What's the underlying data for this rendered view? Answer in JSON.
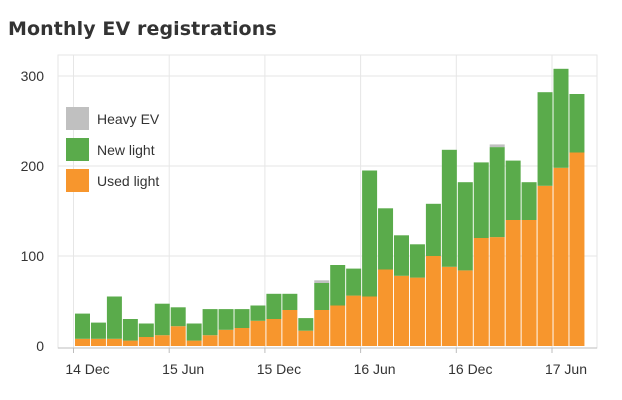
{
  "chart_data": {
    "type": "bar",
    "stacked": true,
    "title": "Monthly EV registrations",
    "xlabel": "",
    "ylabel": "",
    "ylim": [
      0,
      310
    ],
    "yticks": [
      0,
      100,
      200,
      300
    ],
    "xtick_labels": [
      "14 Dec",
      "15 Jun",
      "15 Dec",
      "16 Jun",
      "16 Dec",
      "17 Jun"
    ],
    "xtick_positions": [
      0,
      6,
      12,
      18,
      24,
      30
    ],
    "categories": [
      "Dec 2014",
      "Jan 2015",
      "Feb 2015",
      "Mar 2015",
      "Apr 2015",
      "May 2015",
      "Jun 2015",
      "Jul 2015",
      "Aug 2015",
      "Sep 2015",
      "Oct 2015",
      "Nov 2015",
      "Dec 2015",
      "Jan 2016",
      "Feb 2016",
      "Mar 2016",
      "Apr 2016",
      "May 2016",
      "Jun 2016",
      "Jul 2016",
      "Aug 2016",
      "Sep 2016",
      "Oct 2016",
      "Nov 2016",
      "Dec 2016",
      "Jan 2017",
      "Feb 2017",
      "Mar 2017",
      "Apr 2017",
      "May 2017",
      "Jun 2017",
      "Jul 2017"
    ],
    "series": [
      {
        "name": "Used light",
        "color": "#f7962d",
        "values": [
          8,
          8,
          8,
          6,
          10,
          12,
          22,
          6,
          12,
          18,
          20,
          28,
          30,
          40,
          17,
          40,
          45,
          56,
          55,
          85,
          78,
          76,
          100,
          88,
          84,
          120,
          121,
          140,
          140,
          178,
          198,
          215
        ]
      },
      {
        "name": "New light",
        "color": "#5aab4b",
        "values": [
          28,
          18,
          47,
          24,
          15,
          35,
          21,
          19,
          29,
          23,
          21,
          17,
          28,
          18,
          14,
          30,
          45,
          30,
          140,
          68,
          45,
          37,
          58,
          130,
          98,
          84,
          100,
          66,
          42,
          104,
          110,
          65
        ]
      },
      {
        "name": "Heavy EV",
        "color": "#c0c0c0",
        "values": [
          0,
          0,
          0,
          0,
          0,
          0,
          0,
          0,
          0,
          0,
          0,
          0,
          0,
          0,
          0,
          3,
          0,
          0,
          0,
          0,
          0,
          0,
          0,
          0,
          0,
          0,
          3,
          0,
          0,
          0,
          0,
          0
        ]
      }
    ],
    "legend_position": "top-left",
    "grid": true
  }
}
